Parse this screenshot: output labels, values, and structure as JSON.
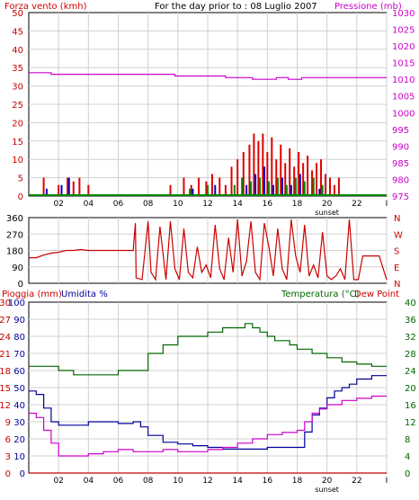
{
  "colors": {
    "wind_speed": "#dd0000",
    "wind_gust": "#0000cc",
    "wind_green": "#008800",
    "pressure": "#cc00cc",
    "direction": "#cc0000",
    "rain": "#cc0000",
    "humidity": "#000099",
    "temperature": "#006600",
    "dewpoint": "#cc00cc",
    "grid": "#d0d0d0",
    "frame": "#000000"
  },
  "chart_data": [
    {
      "type": "bar",
      "title": "For the day prior to : 08 Luglio 2007",
      "ylabel_left": "Forza vento (kmh)",
      "ylabel_right": "Pressione (mb)",
      "x_ticks": [
        "02",
        "04",
        "06",
        "08",
        "10",
        "12",
        "14",
        "16",
        "18",
        "20",
        "22",
        "I"
      ],
      "sunset_label": "sunset",
      "y_left_ticks": [
        "0",
        "5",
        "10",
        "15",
        "20",
        "25",
        "30",
        "35",
        "40",
        "45",
        "50"
      ],
      "y_right_ticks": [
        "975",
        "980",
        "985",
        "990",
        "995",
        "1000",
        "1005",
        "1010",
        "1015",
        "1020",
        "1025",
        "1030"
      ],
      "ylim_left": [
        0,
        50
      ],
      "ylim_right": [
        975,
        1030
      ],
      "series": [
        {
          "name": "Pressione (mb)",
          "role": "pressure",
          "x": [
            0,
            1.5,
            1.5,
            9.8,
            9.8,
            13.2,
            13.2,
            15.0,
            15.0,
            16.6,
            16.6,
            17.4,
            17.4,
            18.3,
            18.3,
            24
          ],
          "values": [
            1012,
            1012,
            1011.5,
            1011.5,
            1011,
            1011,
            1010.5,
            1010.5,
            1010,
            1010,
            1010.5,
            1010.5,
            1010,
            1010,
            1010.5,
            1010.5
          ]
        },
        {
          "name": "wind_speed",
          "role": "wind_speed",
          "x": [
            1.0,
            2.0,
            2.6,
            3.0,
            3.4,
            4.0,
            9.5,
            10.4,
            10.9,
            11.4,
            11.9,
            12.3,
            12.8,
            13.2,
            13.6,
            14.0,
            14.4,
            14.8,
            15.1,
            15.4,
            15.7,
            16.0,
            16.3,
            16.6,
            16.9,
            17.2,
            17.5,
            17.8,
            18.1,
            18.4,
            18.7,
            19.0,
            19.3,
            19.6,
            19.9,
            20.2,
            20.5,
            20.8
          ],
          "values": [
            5,
            3,
            5,
            4,
            5,
            3,
            3,
            5,
            3,
            5,
            4,
            6,
            5,
            3,
            8,
            10,
            12,
            14,
            17,
            15,
            17,
            12,
            16,
            10,
            14,
            9,
            13,
            8,
            12,
            9,
            11,
            7,
            9,
            10,
            6,
            5,
            3,
            5
          ]
        },
        {
          "name": "wind_gust",
          "role": "wind_gust",
          "x": [
            1.2,
            2.2,
            2.7,
            11.0,
            12.5,
            14.6,
            15.2,
            15.8,
            16.4,
            17.0,
            17.6,
            18.2,
            19.5
          ],
          "values": [
            2,
            3,
            5,
            2,
            3,
            3,
            6,
            8,
            3,
            5,
            3,
            6,
            2
          ]
        },
        {
          "name": "wind_green",
          "role": "wind_green",
          "x": [
            10.8,
            12.0,
            13.8,
            14.3,
            14.9,
            15.5,
            16.1,
            16.7,
            17.3,
            17.9,
            18.5,
            19.1,
            19.7
          ],
          "values": [
            2,
            3,
            3,
            5,
            4,
            5,
            4,
            5,
            3,
            5,
            4,
            5,
            3
          ]
        }
      ]
    },
    {
      "type": "line",
      "x_ticks": [
        "02",
        "04",
        "06",
        "08",
        "10",
        "12",
        "14",
        "16",
        "18",
        "20",
        "22",
        "I"
      ],
      "y_left_ticks": [
        "0",
        "90",
        "180",
        "270",
        "360"
      ],
      "y_right_ticks": [
        "N",
        "E",
        "S",
        "W",
        "N"
      ],
      "ylim": [
        0,
        360
      ],
      "series": [
        {
          "name": "direction",
          "role": "direction",
          "x": [
            0,
            0.5,
            1.0,
            1.5,
            2.0,
            2.5,
            3.0,
            3.5,
            4.0,
            4.5,
            5.0,
            5.5,
            6.0,
            6.5,
            7.0,
            7.15,
            7.2,
            7.6,
            8.0,
            8.2,
            8.5,
            8.8,
            9.2,
            9.5,
            9.8,
            10.1,
            10.4,
            10.7,
            11.0,
            11.3,
            11.6,
            11.9,
            12.2,
            12.5,
            12.8,
            13.1,
            13.4,
            13.7,
            14.0,
            14.3,
            14.6,
            14.9,
            15.2,
            15.5,
            15.8,
            16.1,
            16.4,
            16.7,
            17.0,
            17.3,
            17.6,
            17.9,
            18.2,
            18.5,
            18.8,
            19.1,
            19.4,
            19.7,
            20.0,
            20.3,
            20.6,
            20.9,
            21.2,
            21.5,
            21.8,
            22.1,
            22.4,
            22.7,
            23.0,
            23.5,
            24
          ],
          "values": [
            140,
            140,
            155,
            165,
            170,
            180,
            180,
            185,
            180,
            180,
            180,
            180,
            180,
            180,
            180,
            330,
            30,
            20,
            340,
            60,
            20,
            310,
            20,
            340,
            80,
            20,
            300,
            60,
            30,
            200,
            60,
            100,
            30,
            320,
            80,
            20,
            250,
            60,
            350,
            40,
            120,
            340,
            60,
            20,
            330,
            200,
            40,
            300,
            80,
            20,
            350,
            150,
            60,
            320,
            40,
            100,
            30,
            280,
            40,
            20,
            40,
            80,
            20,
            350,
            20,
            20,
            150,
            150,
            150,
            150,
            20
          ]
        }
      ]
    },
    {
      "type": "line",
      "ylabel_left_1": "Pioggia (mm)",
      "ylabel_left_2": "Umidita %",
      "ylabel_right_1": "Temperatura (°C)",
      "ylabel_right_2": "Dew Point",
      "x_ticks": [
        "02",
        "04",
        "06",
        "08",
        "10",
        "12",
        "14",
        "16",
        "18",
        "20",
        "22",
        "I"
      ],
      "sunset_label": "sunset",
      "y_rain_ticks": [
        "0",
        "3",
        "6",
        "9",
        "12",
        "15",
        "18",
        "21",
        "24",
        "27",
        "30"
      ],
      "y_hum_ticks": [
        "0",
        "10",
        "20",
        "30",
        "40",
        "50",
        "60",
        "70",
        "80",
        "90",
        "100"
      ],
      "y_temp_ticks": [
        "0",
        "4",
        "8",
        "12",
        "16",
        "20",
        "24",
        "28",
        "32",
        "36",
        "40"
      ],
      "ylim_humidity": [
        0,
        100
      ],
      "ylim_temperature": [
        0,
        40
      ],
      "series": [
        {
          "name": "Pioggia (mm)",
          "role": "rain",
          "x": [
            0,
            24
          ],
          "values": [
            0,
            0
          ]
        },
        {
          "name": "Umidita %",
          "role": "humidity",
          "x": [
            0,
            0.5,
            1.0,
            1.5,
            2.0,
            3.0,
            4.0,
            5.0,
            6.0,
            7.0,
            7.5,
            8.0,
            9.0,
            10.0,
            11.0,
            12.0,
            13.0,
            14.0,
            15.0,
            16.0,
            17.0,
            18.0,
            18.5,
            19.0,
            19.5,
            20.0,
            20.5,
            21.0,
            21.5,
            22.0,
            23.0,
            24
          ],
          "values": [
            48,
            46,
            38,
            30,
            28,
            28,
            30,
            30,
            29,
            30,
            27,
            22,
            18,
            17,
            16,
            15,
            14,
            14,
            14,
            15,
            15,
            15,
            24,
            34,
            38,
            44,
            48,
            50,
            52,
            55,
            57,
            57
          ]
        },
        {
          "name": "Temperatura (°C)",
          "role": "temperature",
          "x": [
            0,
            1.0,
            2.0,
            3.0,
            4.0,
            5.0,
            6.0,
            7.0,
            8.0,
            9.0,
            10.0,
            11.0,
            12.0,
            13.0,
            14.0,
            14.5,
            15.0,
            15.5,
            16.0,
            16.5,
            17.0,
            17.5,
            18.0,
            19.0,
            20.0,
            21.0,
            22.0,
            23.0,
            24
          ],
          "values": [
            25,
            25,
            24,
            23,
            23,
            23,
            24,
            24,
            28,
            30,
            32,
            32,
            33,
            34,
            34,
            35,
            34,
            33,
            32,
            31,
            31,
            30,
            29,
            28,
            27,
            26,
            25.5,
            25,
            25
          ]
        },
        {
          "name": "Dew Point",
          "role": "dewpoint",
          "x": [
            0,
            0.5,
            1.0,
            1.5,
            2.0,
            3.0,
            4.0,
            5.0,
            6.0,
            7.0,
            8.0,
            9.0,
            10.0,
            11.0,
            12.0,
            13.0,
            14.0,
            15.0,
            16.0,
            17.0,
            18.0,
            18.5,
            19.0,
            19.5,
            20.0,
            21.0,
            22.0,
            23.0,
            24
          ],
          "values": [
            14,
            13,
            10,
            7,
            4,
            4,
            4.5,
            5,
            5.5,
            5,
            5,
            5.5,
            5,
            5,
            5.5,
            6,
            7,
            8,
            9,
            9.5,
            10,
            12,
            14,
            15,
            16,
            17,
            17.5,
            18,
            18
          ]
        }
      ]
    }
  ]
}
